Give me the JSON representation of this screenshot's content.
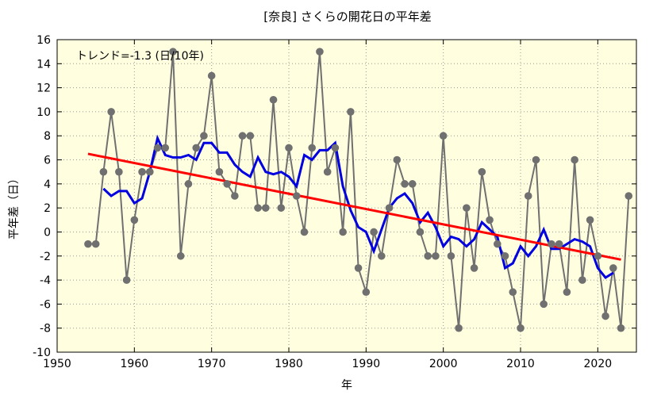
{
  "chart_data": {
    "type": "line",
    "title": "[奈良] さくらの開花日の平年差",
    "xlabel": "年",
    "ylabel": "平年差（日）",
    "annotation": "トレンド=-1.3 (日/10年)",
    "xlim": [
      1950,
      2025
    ],
    "ylim": [
      -10,
      16
    ],
    "x_ticks": [
      1950,
      1960,
      1970,
      1980,
      1990,
      2000,
      2010,
      2020
    ],
    "y_ticks": [
      -10,
      -8,
      -6,
      -4,
      -2,
      0,
      2,
      4,
      6,
      8,
      10,
      12,
      14,
      16
    ],
    "grid": true,
    "colors": {
      "plot_background": "#ffffe0",
      "annual": "#707070",
      "annual_marker": "#707070",
      "moving_average": "#0000e0",
      "trend": "#ff0000",
      "grid": "#999999"
    },
    "series": [
      {
        "style": "line-marker",
        "x": [
          1954,
          1955,
          1956,
          1957,
          1958,
          1959,
          1960,
          1961,
          1962,
          1963,
          1964,
          1965,
          1966,
          1967,
          1968,
          1969,
          1970,
          1971,
          1972,
          1973,
          1974,
          1975,
          1976,
          1977,
          1978,
          1979,
          1980,
          1981,
          1982,
          1983,
          1984,
          1985,
          1986,
          1987,
          1988,
          1989,
          1990,
          1991,
          1992,
          1993,
          1994,
          1995,
          1996,
          1997,
          1998,
          1999,
          2000,
          2001,
          2002,
          2003,
          2004,
          2005,
          2006,
          2007,
          2008,
          2009,
          2010,
          2011,
          2012,
          2013,
          2014,
          2015,
          2016,
          2017,
          2018,
          2019,
          2020,
          2021,
          2022,
          2023,
          2024
        ],
        "values": [
          -1,
          -1,
          5,
          10,
          5,
          -4,
          1,
          5,
          5,
          7,
          7,
          15,
          -2,
          4,
          7,
          8,
          13,
          5,
          4,
          3,
          8,
          8,
          2,
          2,
          11,
          2,
          7,
          3,
          0,
          7,
          15,
          5,
          7,
          0,
          10,
          -3,
          -5,
          0,
          -2,
          2,
          6,
          4,
          4,
          0,
          -2,
          -2,
          8,
          -2,
          -8,
          2,
          -3,
          5,
          1,
          -1,
          -2,
          -5,
          -8,
          3,
          6,
          -6,
          -1,
          -1,
          -5,
          6,
          -4,
          1,
          -2,
          -7,
          -3,
          -8,
          3
        ]
      },
      {
        "style": "line",
        "x": [
          1956,
          1957,
          1958,
          1959,
          1960,
          1961,
          1962,
          1963,
          1964,
          1965,
          1966,
          1967,
          1968,
          1969,
          1970,
          1971,
          1972,
          1973,
          1974,
          1975,
          1976,
          1977,
          1978,
          1979,
          1980,
          1981,
          1982,
          1983,
          1984,
          1985,
          1986,
          1987,
          1988,
          1989,
          1990,
          1991,
          1992,
          1993,
          1994,
          1995,
          1996,
          1997,
          1998,
          1999,
          2000,
          2001,
          2002,
          2003,
          2004,
          2005,
          2006,
          2007,
          2008,
          2009,
          2010,
          2011,
          2012,
          2013,
          2014,
          2015,
          2016,
          2017,
          2018,
          2019,
          2020,
          2021,
          2022
        ],
        "values": [
          3.6,
          3.0,
          3.4,
          3.4,
          2.4,
          2.8,
          5.0,
          7.8,
          6.4,
          6.2,
          6.2,
          6.4,
          6.0,
          7.4,
          7.4,
          6.6,
          6.6,
          5.6,
          5.0,
          4.6,
          6.2,
          5.0,
          4.8,
          5.0,
          4.6,
          3.8,
          6.4,
          6.0,
          6.8,
          6.8,
          7.4,
          3.8,
          1.8,
          0.4,
          0.0,
          -1.6,
          0.2,
          2.0,
          2.8,
          3.2,
          2.4,
          0.8,
          1.6,
          0.4,
          -1.2,
          -0.4,
          -0.6,
          -1.2,
          -0.6,
          0.8,
          0.2,
          -0.4,
          -3.0,
          -2.6,
          -1.2,
          -2.0,
          -1.2,
          0.2,
          -1.4,
          -1.4,
          -1.0,
          -0.6,
          -0.8,
          -1.2,
          -3.0,
          -3.8,
          -3.4
        ]
      },
      {
        "style": "trend",
        "x": [
          1954,
          2023
        ],
        "values": [
          6.5,
          -2.3
        ]
      }
    ]
  }
}
